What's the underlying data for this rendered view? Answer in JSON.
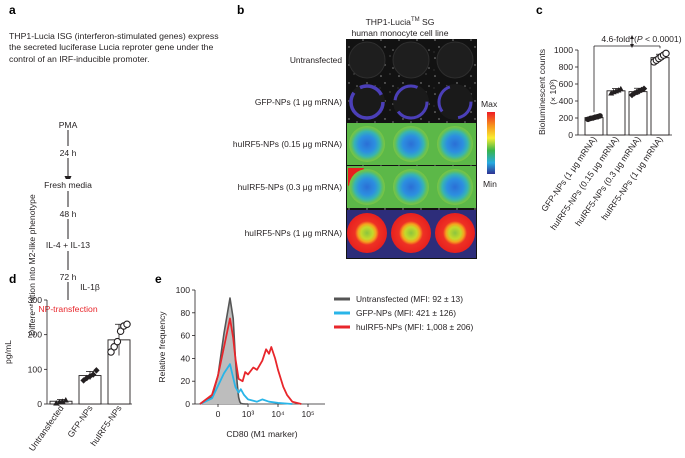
{
  "panel_labels": {
    "a": "a",
    "b": "b",
    "c": "c",
    "d": "d",
    "e": "e"
  },
  "panel_a": {
    "description": "THP1-Lucia ISG (interferon-stimulated genes) express the secreted luciferase Lucia reproter gene under the control of an IRF-inducible promoter.",
    "side_label": "Differentiation into M2-like phenotype",
    "steps": [
      "PMA",
      "24 h",
      "Fresh media",
      "48 h",
      "IL-4 + IL-13",
      "72 h",
      "NP-transfection"
    ],
    "final_step_color": "#e8262b"
  },
  "panel_b": {
    "title_prefix": "THP1-Lucia",
    "title_superscript": "TM",
    "title_suffix": " SG",
    "subtitle": "human monocyte cell line",
    "rows": [
      "Untransfected",
      "GFP-NPs (1 μg mRNA)",
      "huIRF5-NPs (0.15 μg mRNA)",
      "huIRF5-NPs (0.3 μg mRNA)",
      "huIRF5-NPs (1 μg mRNA)"
    ],
    "colorbar_max": "Max",
    "colorbar_min": "Min"
  },
  "chart_data": [
    {
      "panel": "c",
      "type": "bar",
      "ylabel": "Bioluminescent counts",
      "ylabel_unit": "(× 10³)",
      "ylim": [
        0,
        1000
      ],
      "yticks": [
        "0",
        "200",
        "400",
        "600",
        "800",
        "1000"
      ],
      "categories": [
        "GFP-NPs (1 μg mRNA)",
        "huIRF5-NPs (0.15 μg mRNA)",
        "huIRF5-NPs (0.3 μg mRNA)",
        "huIRF5-NPs (1 μg mRNA)"
      ],
      "values": [
        205,
        520,
        510,
        910
      ],
      "errors": [
        15,
        28,
        40,
        40
      ],
      "points": [
        [
          185,
          195,
          200,
          210,
          215,
          225
        ],
        [
          495,
          510,
          520,
          530,
          545
        ],
        [
          470,
          490,
          505,
          515,
          530,
          545
        ],
        [
          860,
          880,
          900,
          920,
          940,
          960
        ]
      ],
      "annotation": "4.6-fold",
      "annotation_p_prefix": "(",
      "annotation_p_italic": "P",
      "annotation_p_suffix": " < 0.0001)"
    },
    {
      "panel": "d",
      "type": "bar",
      "title": "IL-1β",
      "ylabel": "pg/mL",
      "ylim": [
        0,
        300
      ],
      "yticks": [
        "0",
        "100",
        "200",
        "300"
      ],
      "categories": [
        "Untransfected",
        "GFP-NPs",
        "huIRF5-NPs"
      ],
      "values": [
        8,
        82,
        185
      ],
      "errors": [
        5,
        12,
        45
      ],
      "points": [
        [
          3,
          6,
          8,
          12
        ],
        [
          68,
          75,
          80,
          85,
          97
        ],
        [
          150,
          165,
          180,
          210,
          225,
          230
        ]
      ],
      "point_shapes": [
        "triangle",
        "diamond",
        "circle"
      ]
    },
    {
      "panel": "e",
      "type": "line",
      "ylabel": "Relative frequency",
      "xlabel": "CD80 (M1 marker)",
      "ylim": [
        0,
        100
      ],
      "yticks": [
        "0",
        "20",
        "40",
        "60",
        "80",
        "100"
      ],
      "xscale": "log",
      "xticks": [
        "0",
        "10³",
        "10⁴",
        "10⁵"
      ],
      "series": [
        {
          "name": "Untransfected (MFI: 92 ± 13)",
          "color": "#555555",
          "x": [
            -150,
            -50,
            0,
            50,
            100,
            150,
            200,
            250,
            300,
            350,
            400,
            500,
            700,
            1000
          ],
          "y": [
            0,
            6,
            25,
            62,
            93,
            75,
            40,
            18,
            6,
            2,
            0.5,
            0.2,
            0,
            0
          ]
        },
        {
          "name": "GFP-NPs (MFI: 421 ± 126)",
          "color": "#29b5e8",
          "x": [
            -150,
            -50,
            0,
            50,
            100,
            150,
            200,
            300,
            400,
            600,
            1000,
            2000,
            3000,
            5000,
            10000,
            30000
          ],
          "y": [
            0,
            5,
            16,
            27,
            35,
            23,
            15,
            10,
            13,
            8,
            4,
            2,
            4,
            2,
            1,
            0
          ]
        },
        {
          "name": "huIRF5-NPs (MFI: 1,008 ± 206)",
          "color": "#e8262b",
          "x": [
            -150,
            -50,
            0,
            50,
            100,
            150,
            200,
            300,
            500,
            700,
            1000,
            1500,
            2000,
            3000,
            4000,
            5000,
            6000,
            8000,
            10000,
            15000,
            20000,
            30000,
            60000
          ],
          "y": [
            0,
            8,
            25,
            50,
            75,
            58,
            40,
            22,
            20,
            28,
            26,
            32,
            30,
            38,
            48,
            44,
            50,
            40,
            30,
            15,
            8,
            2,
            0
          ]
        }
      ]
    }
  ]
}
